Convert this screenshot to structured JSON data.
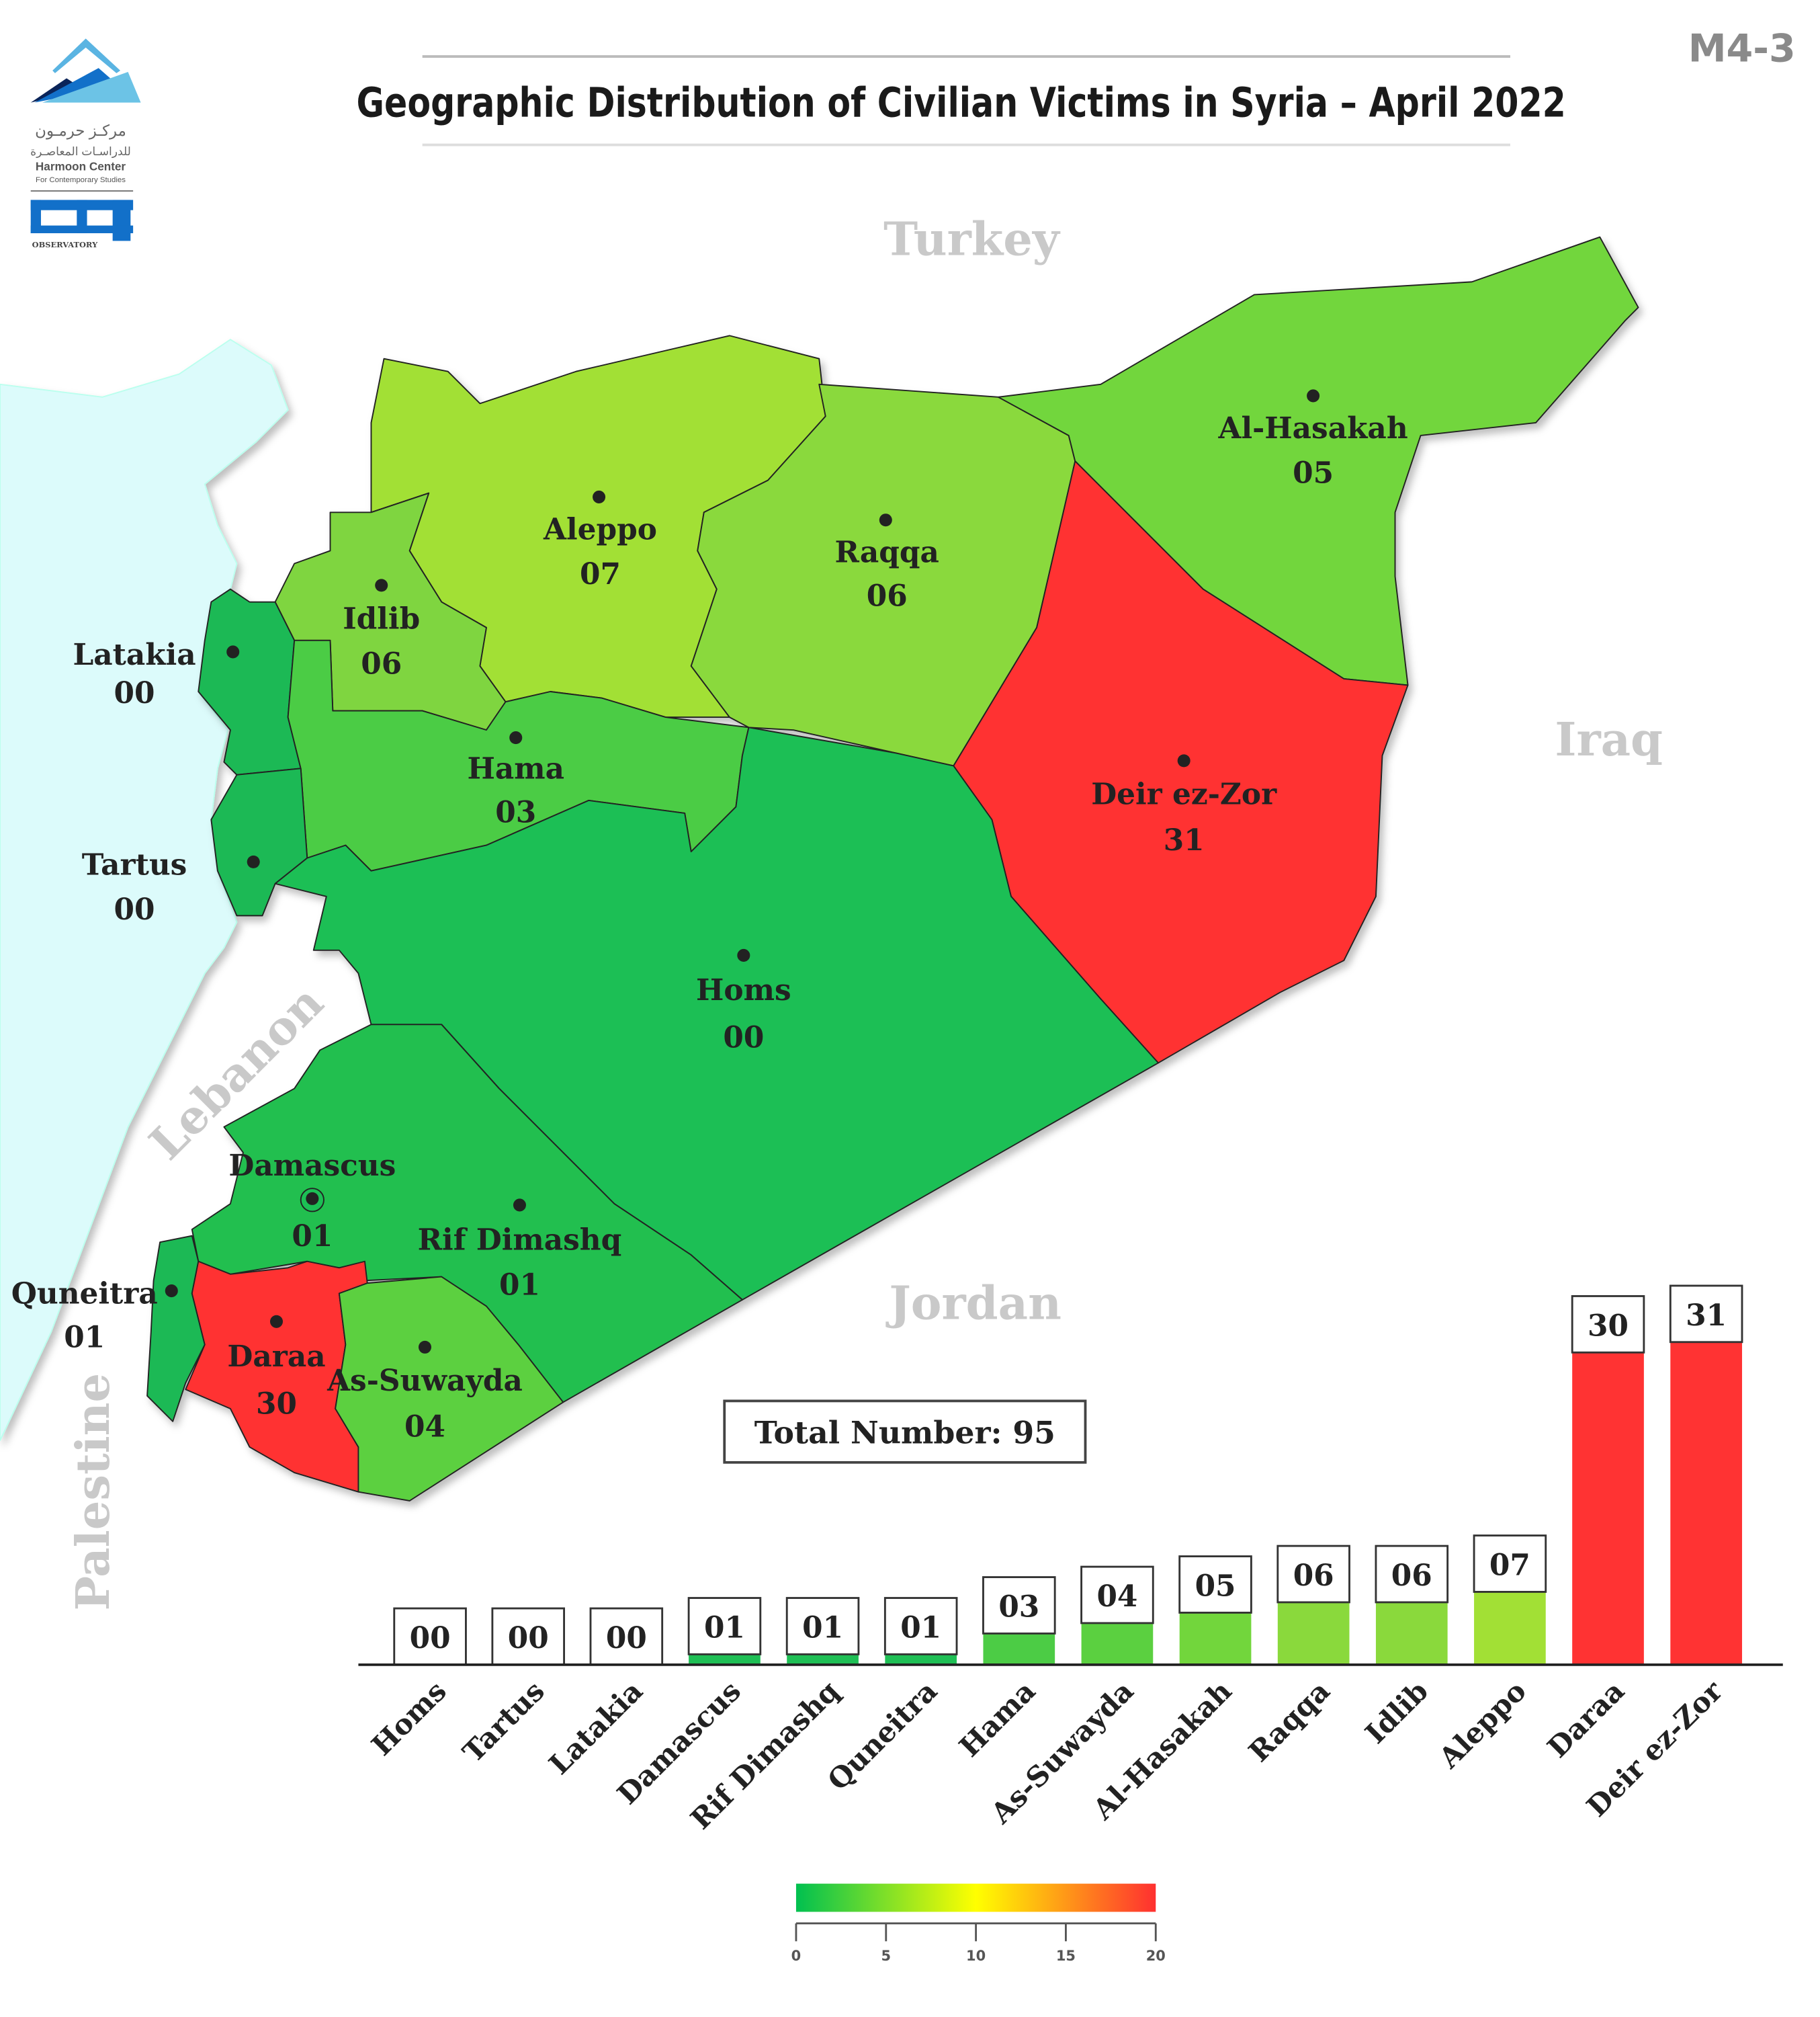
{
  "header": {
    "title": "Geographic Distribution of Civilian Victims in Syria – April 2022",
    "code": "M4-3"
  },
  "logo": {
    "arabic_line1": "مركـز حرمـون",
    "arabic_line2": "للدراسـات المعاصـرة",
    "name": "Harmoon Center",
    "subtitle": "For Contemporary Studies",
    "observatory": "OBSERVATORY"
  },
  "countries": {
    "turkey": "Turkey",
    "iraq": "Iraq",
    "jordan": "Jordan",
    "lebanon": "Lebanon",
    "palestine": "Palestine"
  },
  "total": "Total Number: 95",
  "colors": {
    "sea": "#dcfbfb",
    "high": "#ff3333",
    "zero": "#1fbf55"
  },
  "map_regions": [
    {
      "name": "Aleppo",
      "value": "07",
      "color": "#a2e035"
    },
    {
      "name": "Idlib",
      "value": "06",
      "color": "#7fd540"
    },
    {
      "name": "Raqqa",
      "value": "06",
      "color": "#8ad93c"
    },
    {
      "name": "Al-Hasakah",
      "value": "05",
      "color": "#72d63c"
    },
    {
      "name": "Deir ez-Zor",
      "value": "31",
      "color": "#ff3333"
    },
    {
      "name": "Latakia",
      "value": "00",
      "color": "#1fb955"
    },
    {
      "name": "Hama",
      "value": "03",
      "color": "#4ccc45"
    },
    {
      "name": "Tartus",
      "value": "00",
      "color": "#1fb955"
    },
    {
      "name": "Homs",
      "value": "00",
      "color": "#1fbf55"
    },
    {
      "name": "Damascus",
      "value": "01",
      "color": "#1fbf55"
    },
    {
      "name": "Rif Dimashq",
      "value": "01",
      "color": "#20bf50"
    },
    {
      "name": "Quneitra",
      "value": "01",
      "color": "#1fb955"
    },
    {
      "name": "Daraa",
      "value": "30",
      "color": "#ff3333"
    },
    {
      "name": "As-Suwayda",
      "value": "04",
      "color": "#5bd040"
    }
  ],
  "chart_data": {
    "type": "bar",
    "title": "Geographic Distribution of Civilian Victims in Syria – April 2022",
    "categories": [
      "Homs",
      "Tartus",
      "Latakia",
      "Damascus",
      "Rif Dimashq",
      "Quneitra",
      "Hama",
      "As-Suwayda",
      "Al-Hasakah",
      "Raqqa",
      "Idlib",
      "Aleppo",
      "Daraa",
      "Deir ez-Zor"
    ],
    "values": [
      0,
      0,
      0,
      1,
      1,
      1,
      3,
      4,
      5,
      6,
      6,
      7,
      30,
      31
    ],
    "labels": [
      "00",
      "00",
      "00",
      "01",
      "01",
      "01",
      "03",
      "04",
      "05",
      "06",
      "06",
      "07",
      "30",
      "31"
    ],
    "colors": [
      "#1fbf55",
      "#1fbf55",
      "#1fbf55",
      "#1fbf55",
      "#1fbf55",
      "#1fbf55",
      "#4ccc45",
      "#5bd040",
      "#72d63c",
      "#8ad93c",
      "#8ad93c",
      "#a2e035",
      "#ff3333",
      "#ff3333"
    ],
    "xlabel": "",
    "ylabel": "",
    "ylim": [
      0,
      31
    ],
    "grid": false,
    "legend": {
      "type": "color-scale",
      "range": [
        0,
        20
      ],
      "ticks": [
        "0",
        "5",
        "10",
        "15",
        "20"
      ],
      "colors": [
        "#00c050",
        "#ffff00",
        "#ff3030"
      ],
      "placement": "bottom-center"
    }
  }
}
